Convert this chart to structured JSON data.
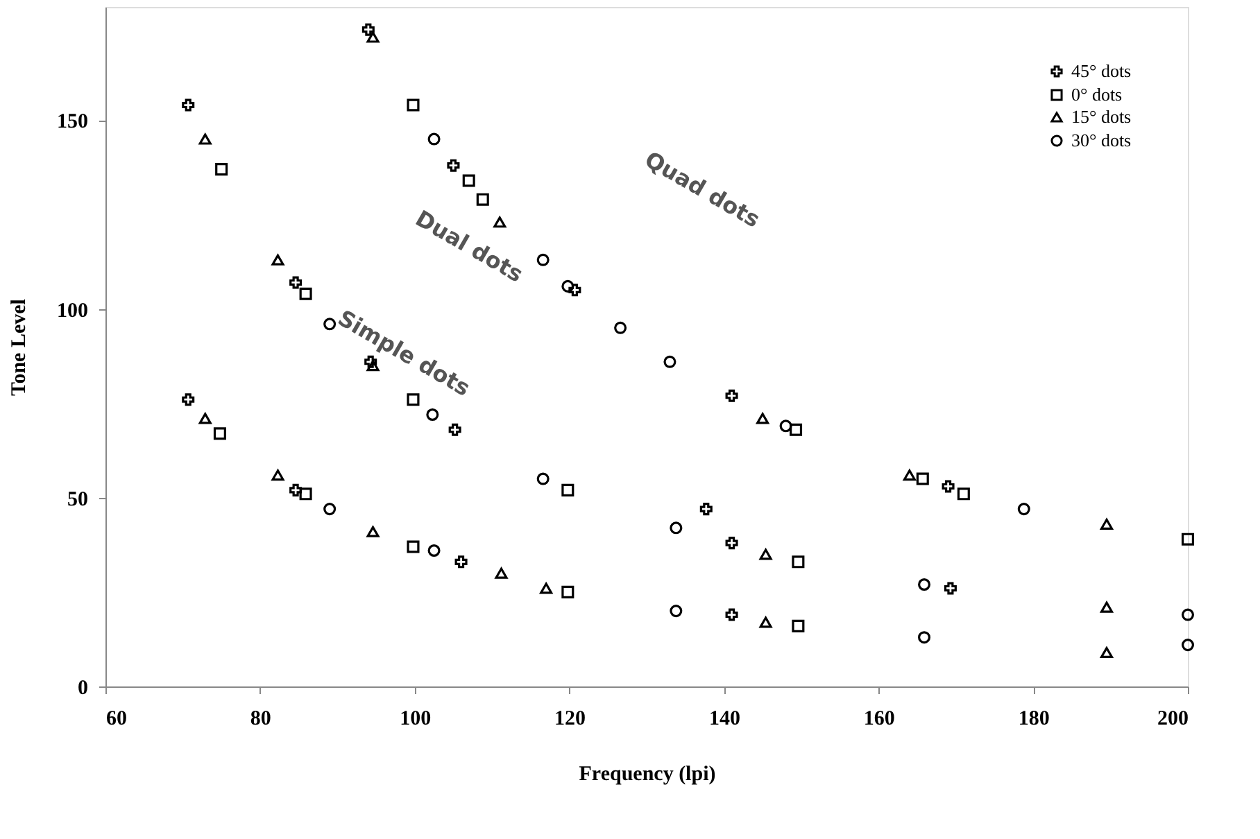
{
  "chart_data": {
    "type": "scatter",
    "xlabel": "Frequency (lpi)",
    "ylabel": "Tone Level",
    "xlim": [
      60,
      200
    ],
    "xticks": [
      60,
      80,
      100,
      120,
      140,
      160,
      180,
      200
    ],
    "ylim": [
      0,
      180
    ],
    "yticks": [
      0,
      50,
      100,
      150
    ],
    "grid": false,
    "legend": "top right",
    "series": [
      {
        "name": "45° dots",
        "color": "#000000",
        "marker": "cross",
        "x": [
          70.7,
          70.7,
          84.6,
          84.6,
          94,
          94.3,
          105,
          105.2,
          106,
          120.7,
          137.7,
          141,
          141,
          141,
          169,
          169.3
        ],
        "values": [
          76,
          154,
          52,
          107,
          174,
          86,
          138,
          68,
          33,
          105,
          47,
          77,
          38,
          19,
          53,
          26
        ]
      },
      {
        "name": "0° dots",
        "color": "#000000",
        "marker": "square",
        "x": [
          74.8,
          75,
          85.9,
          85.9,
          99.8,
          99.8,
          99.8,
          107,
          108.8,
          119.8,
          119.8,
          149.3,
          149.6,
          149.6,
          165.7,
          171,
          200
        ],
        "values": [
          67,
          137,
          104,
          51,
          154,
          37,
          76,
          134,
          129,
          52,
          25,
          68,
          33,
          16,
          55,
          51,
          39
        ]
      },
      {
        "name": "15° dots",
        "color": "#000000",
        "marker": "triangle",
        "x": [
          72.9,
          72.9,
          82.3,
          82.3,
          94.6,
          94.6,
          94.6,
          111,
          111.2,
          117,
          145,
          145.4,
          145.4,
          164,
          189.5,
          189.5,
          189.5
        ],
        "values": [
          145,
          71,
          113,
          56,
          172,
          85,
          41,
          123,
          30,
          26,
          71,
          35,
          17,
          56,
          43,
          21,
          9
        ]
      },
      {
        "name": "30° dots",
        "color": "#000000",
        "marker": "circle",
        "x": [
          89,
          89,
          102.5,
          102.5,
          102.3,
          116.6,
          116.6,
          119.8,
          126.6,
          133,
          133.8,
          133.8,
          148,
          165.9,
          165.9,
          178.8,
          200,
          200
        ],
        "values": [
          96,
          47,
          145,
          36,
          72,
          113,
          55,
          106,
          95,
          86,
          42,
          20,
          69,
          27,
          13,
          47,
          19,
          11
        ]
      }
    ],
    "annotations": [
      "Quad dots",
      "Dual dots",
      "Simple dots"
    ]
  }
}
